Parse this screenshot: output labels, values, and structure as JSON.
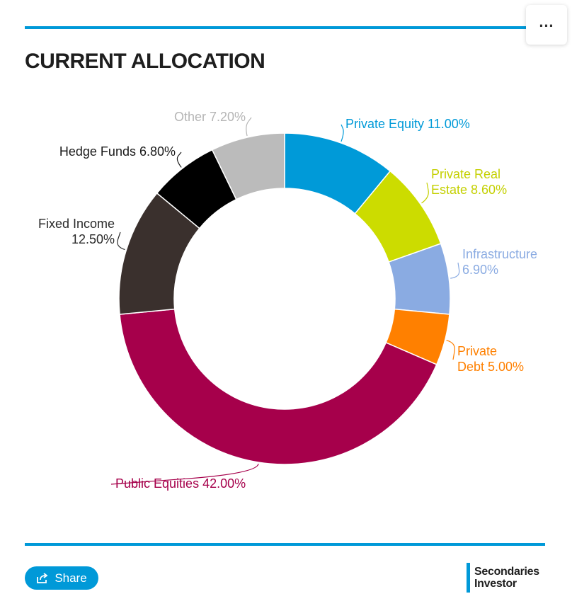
{
  "header": {
    "title": "CURRENT ALLOCATION",
    "menu_icon": "ellipsis-icon",
    "menu_label": "…"
  },
  "colors": {
    "rule": "#0099d8",
    "share": "#0099d8",
    "brand_bar": "#0099d8"
  },
  "chart_data": {
    "type": "pie",
    "subtype": "donut",
    "title": "CURRENT ALLOCATION",
    "slices": [
      {
        "label": "Private Equity",
        "value": 11.0,
        "display": "11.00%",
        "color": "#009ad8"
      },
      {
        "label": "Private Real Estate",
        "value": 8.6,
        "display": "8.60%",
        "color": "#ccdc00"
      },
      {
        "label": "Infrastructure",
        "value": 6.9,
        "display": "6.90%",
        "color": "#8aabe2"
      },
      {
        "label": "Private Debt",
        "value": 5.0,
        "display": "5.00%",
        "color": "#ff8000"
      },
      {
        "label": "Public Equities",
        "value": 42.0,
        "display": "42.00%",
        "color": "#a6004b"
      },
      {
        "label": "Fixed Income",
        "value": 12.5,
        "display": "12.50%",
        "color": "#3a302d"
      },
      {
        "label": "Hedge Funds",
        "value": 6.8,
        "display": "6.80%",
        "color": "#000000"
      },
      {
        "label": "Other",
        "value": 7.2,
        "display": "7.20%",
        "color": "#bbbbbb"
      }
    ],
    "label_colors": [
      "#009ad8",
      "#c4d000",
      "#8aabe2",
      "#ff8000",
      "#a6004b",
      "#2a2a2a",
      "#1a1a1a",
      "#b5b5b5"
    ]
  },
  "footer": {
    "share_label": "Share",
    "share_icon": "share-icon",
    "brand_line1": "Secondaries",
    "brand_line2": "Investor"
  }
}
